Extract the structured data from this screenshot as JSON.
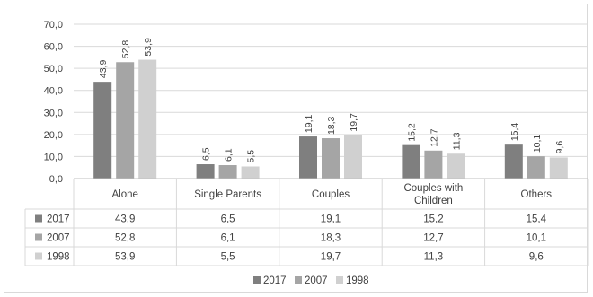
{
  "chart_data": {
    "type": "bar",
    "categories": [
      "Alone",
      "Single Parents",
      "Couples",
      "Couples with Children",
      "Others"
    ],
    "category_lines": [
      [
        "Alone"
      ],
      [
        "Single Parents"
      ],
      [
        "Couples"
      ],
      [
        "Couples with",
        "Children"
      ],
      [
        "Others"
      ]
    ],
    "series": [
      {
        "name": "2017",
        "values": [
          43.9,
          6.5,
          19.1,
          15.2,
          15.4
        ],
        "labels": [
          "43,9",
          "6,5",
          "19,1",
          "15,2",
          "15,4"
        ],
        "color": "#7f7f7f"
      },
      {
        "name": "2007",
        "values": [
          52.8,
          6.1,
          18.3,
          12.7,
          10.1
        ],
        "labels": [
          "52,8",
          "6,1",
          "18,3",
          "12,7",
          "10,1"
        ],
        "color": "#a5a5a5"
      },
      {
        "name": "1998",
        "values": [
          53.9,
          5.5,
          19.7,
          11.3,
          9.6
        ],
        "labels": [
          "53,9",
          "5,5",
          "19,7",
          "11,3",
          "9,6"
        ],
        "color": "#d0d0d0"
      }
    ],
    "ylim": [
      0,
      70
    ],
    "yticks": [
      "0,0",
      "10,0",
      "20,0",
      "30,0",
      "40,0",
      "50,0",
      "60,0",
      "70,0"
    ],
    "grid": true,
    "data_table": true,
    "legend": "bottom-center"
  }
}
